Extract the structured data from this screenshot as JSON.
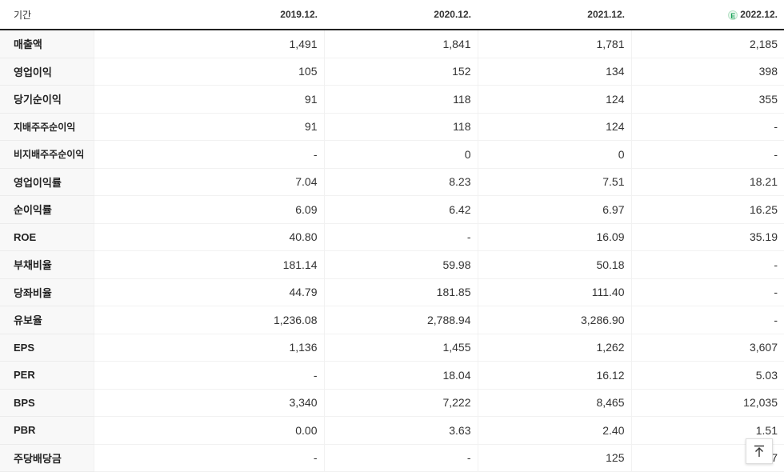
{
  "header": {
    "label": "기간",
    "periods": [
      "2019.12.",
      "2020.12.",
      "2021.12.",
      "2022.12."
    ],
    "estimate_badge": "E"
  },
  "rows": [
    {
      "label": "매출액",
      "values": [
        "1,491",
        "1,841",
        "1,781",
        "2,185"
      ]
    },
    {
      "label": "영업이익",
      "values": [
        "105",
        "152",
        "134",
        "398"
      ]
    },
    {
      "label": "당기순이익",
      "values": [
        "91",
        "118",
        "124",
        "355"
      ]
    },
    {
      "label": "지배주주순이익",
      "values": [
        "91",
        "118",
        "124",
        "-"
      ]
    },
    {
      "label": "비지배주주순이익",
      "values": [
        "-",
        "0",
        "0",
        "-"
      ]
    },
    {
      "label": "영업이익률",
      "values": [
        "7.04",
        "8.23",
        "7.51",
        "18.21"
      ]
    },
    {
      "label": "순이익률",
      "values": [
        "6.09",
        "6.42",
        "6.97",
        "16.25"
      ]
    },
    {
      "label": "ROE",
      "values": [
        "40.80",
        "-",
        "16.09",
        "35.19"
      ]
    },
    {
      "label": "부채비율",
      "values": [
        "181.14",
        "59.98",
        "50.18",
        "-"
      ]
    },
    {
      "label": "당좌비율",
      "values": [
        "44.79",
        "181.85",
        "111.40",
        "-"
      ]
    },
    {
      "label": "유보율",
      "values": [
        "1,236.08",
        "2,788.94",
        "3,286.90",
        "-"
      ]
    },
    {
      "label": "EPS",
      "values": [
        "1,136",
        "1,455",
        "1,262",
        "3,607"
      ]
    },
    {
      "label": "PER",
      "values": [
        "-",
        "18.04",
        "16.12",
        "5.03"
      ]
    },
    {
      "label": "BPS",
      "values": [
        "3,340",
        "7,222",
        "8,465",
        "12,035"
      ]
    },
    {
      "label": "PBR",
      "values": [
        "0.00",
        "3.63",
        "2.40",
        "1.51"
      ]
    },
    {
      "label": "주당배당금",
      "values": [
        "-",
        "-",
        "125",
        "7"
      ]
    }
  ],
  "scroll_top_button": {
    "icon": "arrow-up-icon"
  }
}
